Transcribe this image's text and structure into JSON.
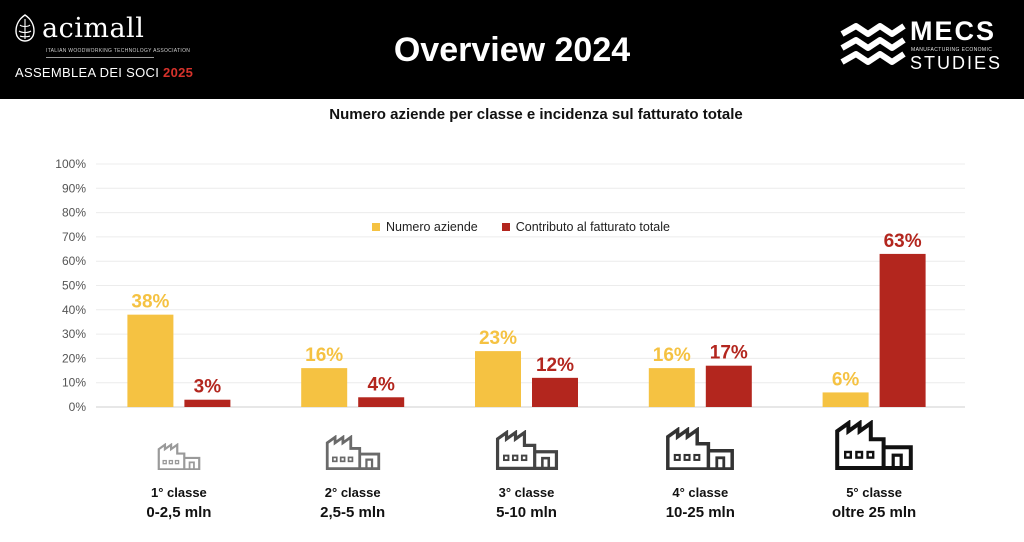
{
  "header": {
    "left_logo": {
      "name": "acimall",
      "tagline": "ITALIAN WOODWORKING TECHNOLOGY ASSOCIATION",
      "event": "ASSEMBLEA DEI SOCI",
      "event_year": "2025"
    },
    "title": "Overview 2024",
    "right_logo": {
      "name": "MECS",
      "subtitle": "MANUFACTURING ECONOMIC",
      "studies": "STUDIES"
    }
  },
  "colors": {
    "numero_aziende": "#f5c242",
    "contributo": "#b3261e",
    "header_bg": "#000000"
  },
  "chart_data": {
    "type": "bar",
    "title": "Numero aziende per classe e incidenza sul fatturato totale",
    "categories": [
      "1° classe 0-2,5 mln",
      "2° classe 2,5-5 mln",
      "3° classe 5-10 mln",
      "4° classe 10-25 mln",
      "5° classe oltre 25 mln"
    ],
    "series": [
      {
        "name": "Numero aziende",
        "values": [
          38,
          16,
          23,
          16,
          6
        ],
        "labels": [
          "38%",
          "16%",
          "23%",
          "16%",
          "6%"
        ]
      },
      {
        "name": "Contributo al fatturato totale",
        "values": [
          3,
          4,
          12,
          17,
          63
        ],
        "labels": [
          "3%",
          "4%",
          "12%",
          "17%",
          "63%"
        ]
      }
    ],
    "ylim": [
      0,
      100
    ],
    "yticks": [
      "0%",
      "10%",
      "20%",
      "30%",
      "40%",
      "50%",
      "60%",
      "70%",
      "80%",
      "90%",
      "100%"
    ],
    "grid": true,
    "legend_position": "top-center"
  },
  "classes": [
    {
      "name": "1° classe",
      "range": "0-2,5 mln",
      "icon": "factory-icon"
    },
    {
      "name": "2° classe",
      "range": "2,5-5 mln",
      "icon": "factory-icon"
    },
    {
      "name": "3° classe",
      "range": "5-10 mln",
      "icon": "factory-icon"
    },
    {
      "name": "4° classe",
      "range": "10-25 mln",
      "icon": "factory-icon"
    },
    {
      "name": "5° classe",
      "range": "oltre 25 mln",
      "icon": "factory-icon"
    }
  ]
}
